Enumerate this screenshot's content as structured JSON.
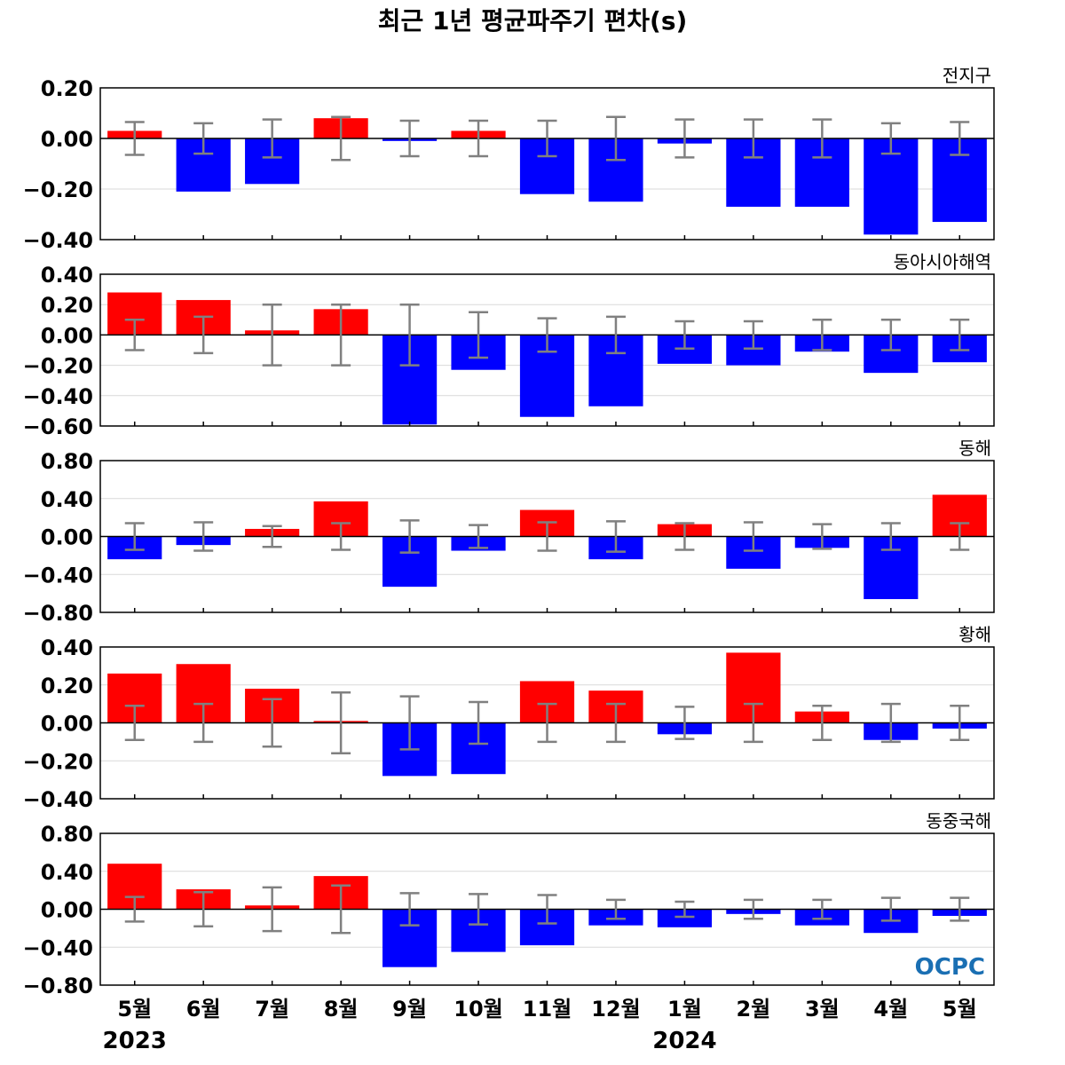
{
  "title": "최근 1년 평균파주기 편차(s)",
  "logo_text": "OCPC",
  "colors": {
    "positive": "#ff0000",
    "negative": "#0000ff",
    "errorbar": "#808080",
    "zero": "#000000",
    "grid": "#d9d9d9"
  },
  "chart_data": {
    "type": "bar",
    "categories": [
      "5월",
      "6월",
      "7월",
      "8월",
      "9월",
      "10월",
      "11월",
      "12월",
      "1월",
      "2월",
      "3월",
      "4월",
      "5월"
    ],
    "year_labels": [
      {
        "label": "2023",
        "category_index": 0
      },
      {
        "label": "2024",
        "category_index": 8
      }
    ],
    "error_bars": true,
    "grid": "horizontal",
    "panels": [
      {
        "label": "전지구",
        "ylim": [
          -0.4,
          0.2
        ],
        "yticks": [
          "0.20",
          "0.00",
          "−0.20",
          "−0.40"
        ],
        "ytick_values": [
          0.2,
          0.0,
          -0.2,
          -0.4
        ],
        "values": [
          0.03,
          -0.21,
          -0.18,
          0.08,
          -0.01,
          0.03,
          -0.22,
          -0.25,
          -0.02,
          -0.27,
          -0.27,
          -0.38,
          -0.33
        ],
        "errors": [
          0.065,
          0.06,
          0.075,
          0.085,
          0.07,
          0.07,
          0.07,
          0.085,
          0.075,
          0.075,
          0.075,
          0.06,
          0.065
        ]
      },
      {
        "label": "동아시아해역",
        "ylim": [
          -0.6,
          0.4
        ],
        "yticks": [
          "0.40",
          "0.20",
          "0.00",
          "−0.20",
          "−0.40",
          "−0.60"
        ],
        "ytick_values": [
          0.4,
          0.2,
          0.0,
          -0.2,
          -0.4,
          -0.6
        ],
        "values": [
          0.28,
          0.23,
          0.03,
          0.17,
          -0.59,
          -0.23,
          -0.54,
          -0.47,
          -0.19,
          -0.2,
          -0.11,
          -0.25,
          -0.18
        ],
        "errors": [
          0.1,
          0.12,
          0.2,
          0.2,
          0.2,
          0.15,
          0.11,
          0.12,
          0.09,
          0.09,
          0.1,
          0.1,
          0.1
        ]
      },
      {
        "label": "동해",
        "ylim": [
          -0.8,
          0.8
        ],
        "yticks": [
          "0.80",
          "0.40",
          "0.00",
          "−0.40",
          "−0.80"
        ],
        "ytick_values": [
          0.8,
          0.4,
          0.0,
          -0.4,
          -0.8
        ],
        "values": [
          -0.24,
          -0.09,
          0.08,
          0.37,
          -0.53,
          -0.15,
          0.28,
          -0.24,
          0.13,
          -0.34,
          -0.12,
          -0.66,
          0.44
        ],
        "errors": [
          0.14,
          0.15,
          0.11,
          0.14,
          0.17,
          0.12,
          0.15,
          0.16,
          0.14,
          0.15,
          0.13,
          0.14,
          0.14
        ]
      },
      {
        "label": "황해",
        "ylim": [
          -0.4,
          0.4
        ],
        "yticks": [
          "0.40",
          "0.20",
          "0.00",
          "−0.20",
          "−0.40"
        ],
        "ytick_values": [
          0.4,
          0.2,
          0.0,
          -0.2,
          -0.4
        ],
        "values": [
          0.26,
          0.31,
          0.18,
          0.01,
          -0.28,
          -0.27,
          0.22,
          0.17,
          -0.06,
          0.37,
          0.06,
          -0.09,
          -0.03
        ],
        "errors": [
          0.09,
          0.1,
          0.125,
          0.16,
          0.14,
          0.11,
          0.1,
          0.1,
          0.085,
          0.1,
          0.09,
          0.1,
          0.09
        ]
      },
      {
        "label": "동중국해",
        "ylim": [
          -0.8,
          0.8
        ],
        "yticks": [
          "0.80",
          "0.40",
          "0.00",
          "−0.40",
          "−0.80"
        ],
        "ytick_values": [
          0.8,
          0.4,
          0.0,
          -0.4,
          -0.8
        ],
        "values": [
          0.48,
          0.21,
          0.04,
          0.35,
          -0.61,
          -0.45,
          -0.38,
          -0.17,
          -0.19,
          -0.05,
          -0.17,
          -0.25,
          -0.07
        ],
        "errors": [
          0.13,
          0.18,
          0.23,
          0.25,
          0.17,
          0.16,
          0.15,
          0.1,
          0.08,
          0.1,
          0.1,
          0.12,
          0.12
        ]
      }
    ]
  }
}
